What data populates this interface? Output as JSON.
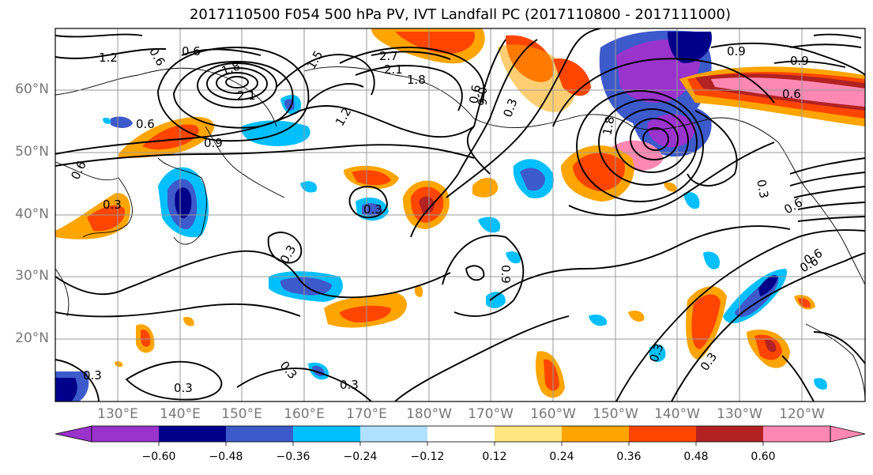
{
  "title": "2017110500 F054 500 hPa PV, IVT Landfall PC (2017110800 - 2017111000)",
  "lat_labels": [
    "60°N",
    "50°N",
    "40°N",
    "30°N",
    "20°N"
  ],
  "lon_labels": [
    "130°E",
    "140°E",
    "150°E",
    "160°E",
    "170°E",
    "180°W",
    "170°W",
    "160°W",
    "150°W",
    "140°W",
    "130°W",
    "120°W"
  ],
  "colorbar": {
    "colors": [
      "#9933cc",
      "#00008b",
      "#3d5acb",
      "#00bfff",
      "#b0e0ff",
      "#ffffff",
      "#ffe680",
      "#ffa500",
      "#ff4500",
      "#b22222",
      "#ff88b2"
    ],
    "tick_labels": [
      "−0.60",
      "−0.48",
      "−0.36",
      "−0.24",
      "−0.12",
      "0.12",
      "0.24",
      "0.36",
      "0.48",
      "0.60"
    ]
  },
  "contour_labels": [
    "1.2",
    "0.6",
    "0.6",
    "1.8",
    "2.1",
    "1.5",
    "2.7",
    "2.1",
    "1.8",
    "0.6",
    "0.9",
    "0.6",
    "1.8",
    "0.6",
    "0.9",
    "0.6",
    "0.3",
    "1.2",
    "0.3",
    "0.3",
    "0.9",
    "0.3",
    "0.6",
    "0.3",
    "0.6",
    "0.6",
    "0.9",
    "0.6",
    "0.3",
    "0.3",
    "0.3",
    "0.3",
    "0.3",
    "0.3"
  ]
}
